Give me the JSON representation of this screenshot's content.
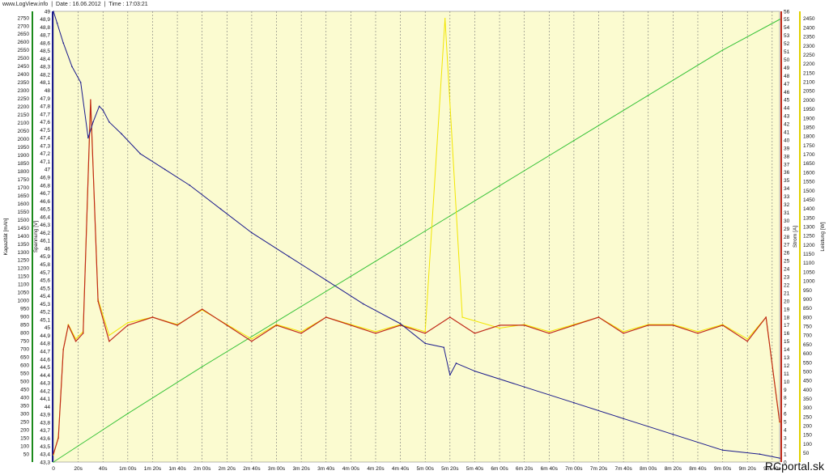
{
  "header": {
    "site": "www.LogView.info",
    "date": "Date : 16.06.2012",
    "time": "Time : 17:03:21",
    "separator": "|"
  },
  "watermark": "RCportal.sk",
  "colors": {
    "plot_bg": "#fbfbd0",
    "kapazitaet": "#39c339",
    "spannung": "#1a1a8c",
    "strom": "#c02a1a",
    "leistung": "#f2e600",
    "grid": "#777777"
  },
  "chart_data": {
    "type": "line",
    "x_unit": "time",
    "x_range": [
      0,
      586
    ],
    "xticks": [
      "0",
      "20s",
      "40s",
      "1m 00s",
      "1m 20s",
      "1m 40s",
      "2m 00s",
      "2m 20s",
      "2m 40s",
      "3m 00s",
      "3m 20s",
      "3m 40s",
      "4m 00s",
      "4m 20s",
      "4m 40s",
      "5m 00s",
      "5m 20s",
      "5m 40s",
      "6m 00s",
      "6m 20s",
      "6m 40s",
      "7m 00s",
      "7m 20s",
      "7m 40s",
      "8m 00s",
      "8m 20s",
      "8m 40s",
      "9m 00s",
      "9m 20s",
      "9m 40s"
    ],
    "axes": {
      "kapazitaet": {
        "label": "Kapazität [mAh]",
        "range": [
          0,
          2790
        ],
        "ticks": [
          50,
          100,
          150,
          200,
          250,
          300,
          350,
          400,
          450,
          500,
          550,
          600,
          650,
          700,
          750,
          800,
          850,
          900,
          950,
          1000,
          1050,
          1100,
          1150,
          1200,
          1250,
          1300,
          1350,
          1400,
          1450,
          1500,
          1550,
          1600,
          1650,
          1700,
          1750,
          1800,
          1850,
          1900,
          1950,
          2000,
          2050,
          2100,
          2150,
          2200,
          2250,
          2300,
          2350,
          2400,
          2450,
          2500,
          2550,
          2600,
          2650,
          2700,
          2750
        ]
      },
      "spannung": {
        "label": "Spannung [V]",
        "range": [
          43.3,
          49.0
        ],
        "ticks": [
          "43,3",
          "43,4",
          "43,5",
          "43,6",
          "43,7",
          "43,8",
          "43,9",
          "44",
          "44,1",
          "44,2",
          "44,3",
          "44,4",
          "44,5",
          "44,6",
          "44,7",
          "44,8",
          "44,9",
          "45",
          "45,1",
          "45,2",
          "45,3",
          "45,4",
          "45,5",
          "45,6",
          "45,7",
          "45,8",
          "45,9",
          "46",
          "46,1",
          "46,2",
          "46,3",
          "46,4",
          "46,5",
          "46,6",
          "46,7",
          "46,8",
          "46,9",
          "47",
          "47,1",
          "47,2",
          "47,3",
          "47,4",
          "47,5",
          "47,6",
          "47,7",
          "47,8",
          "47,9",
          "48",
          "48,1",
          "48,2",
          "48,3",
          "48,4",
          "48,5",
          "48,6",
          "48,7",
          "48,8",
          "48,9",
          "49"
        ]
      },
      "strom": {
        "label": "Strom [A]",
        "range": [
          0,
          56
        ],
        "ticks": [
          0,
          1,
          2,
          3,
          4,
          5,
          6,
          7,
          8,
          9,
          10,
          11,
          12,
          13,
          14,
          15,
          16,
          17,
          18,
          19,
          20,
          21,
          22,
          23,
          24,
          25,
          26,
          27,
          28,
          29,
          30,
          31,
          32,
          33,
          34,
          35,
          36,
          37,
          38,
          39,
          40,
          41,
          42,
          43,
          44,
          45,
          46,
          47,
          48,
          49,
          50,
          51,
          52,
          53,
          54,
          55,
          56
        ]
      },
      "leistung": {
        "label": "Leistung [W]",
        "range": [
          0,
          2490
        ],
        "ticks": [
          50,
          100,
          150,
          200,
          250,
          300,
          350,
          400,
          450,
          500,
          550,
          600,
          650,
          700,
          750,
          800,
          850,
          900,
          950,
          1000,
          1050,
          1100,
          1150,
          1200,
          1250,
          1300,
          1350,
          1400,
          1450,
          1500,
          1550,
          1600,
          1650,
          1700,
          1750,
          1800,
          1850,
          1900,
          1950,
          2000,
          2050,
          2100,
          2150,
          2200,
          2250,
          2300,
          2350,
          2400,
          2450
        ]
      }
    },
    "series": [
      {
        "name": "Kapazität [mAh]",
        "axis": "kapazitaet",
        "color": "#39c339",
        "x": [
          0,
          60,
          120,
          180,
          240,
          300,
          360,
          420,
          480,
          540,
          586
        ],
        "y": [
          0,
          300,
          590,
          870,
          1150,
          1430,
          1710,
          1990,
          2270,
          2550,
          2740
        ]
      },
      {
        "name": "Spannung [V]",
        "axis": "spannung",
        "color": "#1a1a8c",
        "x": [
          0,
          3,
          8,
          15,
          22,
          28,
          32,
          37,
          40,
          45,
          55,
          70,
          90,
          110,
          135,
          160,
          190,
          220,
          250,
          280,
          300,
          315,
          320,
          325,
          340,
          380,
          420,
          460,
          500,
          540,
          570,
          586
        ],
        "y": [
          49.0,
          48.85,
          48.6,
          48.3,
          48.1,
          47.4,
          47.6,
          47.8,
          47.75,
          47.6,
          47.45,
          47.2,
          47.0,
          46.8,
          46.5,
          46.2,
          45.9,
          45.6,
          45.3,
          45.05,
          44.8,
          44.75,
          44.4,
          44.55,
          44.45,
          44.25,
          44.05,
          43.85,
          43.65,
          43.45,
          43.4,
          43.35
        ]
      },
      {
        "name": "Strom [A]",
        "axis": "strom",
        "color": "#c02a1a",
        "x": [
          0,
          4,
          8,
          12,
          18,
          24,
          30,
          36,
          45,
          60,
          80,
          100,
          120,
          140,
          160,
          180,
          200,
          220,
          240,
          260,
          280,
          300,
          320,
          340,
          360,
          380,
          400,
          420,
          440,
          460,
          480,
          500,
          520,
          540,
          560,
          575,
          586
        ],
        "y": [
          1,
          3,
          14,
          17,
          15,
          16,
          45,
          20,
          15,
          17,
          18,
          17,
          19,
          17,
          15,
          17,
          16,
          18,
          17,
          16,
          17,
          16,
          18,
          16,
          17,
          17,
          16,
          17,
          18,
          16,
          17,
          17,
          16,
          17,
          15,
          18,
          5
        ]
      },
      {
        "name": "Leistung [W]",
        "axis": "leistung",
        "color": "#f2e600",
        "x": [
          0,
          4,
          8,
          12,
          18,
          24,
          30,
          36,
          45,
          60,
          80,
          100,
          120,
          140,
          160,
          180,
          200,
          220,
          240,
          260,
          280,
          300,
          316,
          330,
          360,
          380,
          400,
          420,
          440,
          460,
          480,
          500,
          520,
          540,
          560,
          575,
          586
        ],
        "y": [
          40,
          140,
          620,
          760,
          680,
          720,
          1990,
          900,
          700,
          770,
          800,
          760,
          840,
          760,
          680,
          760,
          720,
          800,
          760,
          720,
          760,
          720,
          2450,
          800,
          740,
          760,
          720,
          760,
          800,
          720,
          760,
          760,
          720,
          760,
          680,
          800,
          220
        ]
      }
    ]
  }
}
